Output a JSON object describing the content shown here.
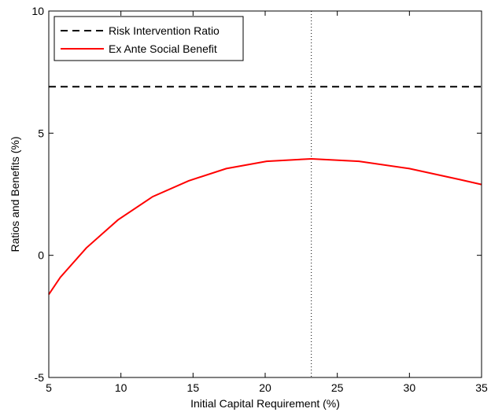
{
  "chart_data": {
    "type": "line",
    "xlabel": "Initial Capital Requirement (%)",
    "ylabel": "Ratios and Benefits (%)",
    "xlim": [
      5,
      35
    ],
    "ylim": [
      -5,
      10
    ],
    "xticks": [
      5,
      10,
      15,
      20,
      25,
      30,
      35
    ],
    "yticks": [
      -5,
      0,
      5,
      10
    ],
    "grid": false,
    "legend_position": "top-left",
    "series": [
      {
        "name": "Risk Intervention Ratio",
        "style": "dashed",
        "color": "#000000",
        "x": [
          5,
          35
        ],
        "y": [
          6.9,
          6.9
        ]
      },
      {
        "name": "Ex Ante Social Benefit",
        "style": "solid",
        "color": "#ff0000",
        "x": [
          5,
          5.8,
          7.6,
          9.8,
          12.2,
          14.7,
          17.3,
          20.1,
          23.2,
          26.5,
          30.0,
          33.5,
          35
        ],
        "y": [
          -1.6,
          -0.9,
          0.3,
          1.45,
          2.4,
          3.05,
          3.55,
          3.85,
          3.95,
          3.85,
          3.55,
          3.1,
          2.9
        ]
      }
    ],
    "annotations": [
      {
        "type": "vline",
        "x": 23.2,
        "style": "dotted",
        "color": "#000000"
      }
    ]
  }
}
